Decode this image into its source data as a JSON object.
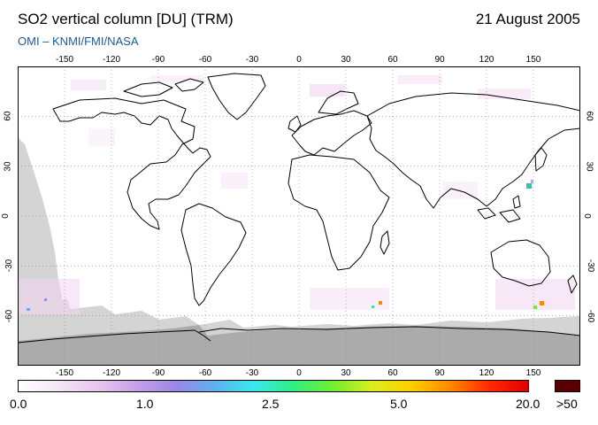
{
  "header": {
    "title": "SO2 vertical column [DU] (TRM)",
    "date": "21 August 2005",
    "credit": "OMI  –  KNMI/FMI/NASA"
  },
  "map": {
    "projection": "equirectangular",
    "lon_range": [
      -180,
      180
    ],
    "lat_range": [
      -90,
      90
    ],
    "grid": "dotted",
    "lon_ticks": [
      "-150",
      "-120",
      "-90",
      "-60",
      "-30",
      "0",
      "30",
      "60",
      "90",
      "120",
      "150"
    ],
    "lat_ticks": [
      "60",
      "30",
      "0",
      "-30",
      "-60"
    ],
    "colors": {
      "background": "#ffffff",
      "coastline": "#000000",
      "no_data": "#d4d4d4",
      "polar_night": "#ababab"
    }
  },
  "colorbar": {
    "labels": [
      "0.0",
      "1.0",
      "2.5",
      "5.0",
      "20.0"
    ],
    "overflow_label": ">50",
    "overflow_color": "#5a0000",
    "stops": [
      "#ffffff",
      "#f4e6f6",
      "#e9c6ef",
      "#c8a0e8",
      "#9a88e6",
      "#5fb0f0",
      "#38e8f0",
      "#30ee80",
      "#70ee30",
      "#d8ee20",
      "#ffd000",
      "#ff8a00",
      "#ff2a00",
      "#e00000"
    ]
  }
}
